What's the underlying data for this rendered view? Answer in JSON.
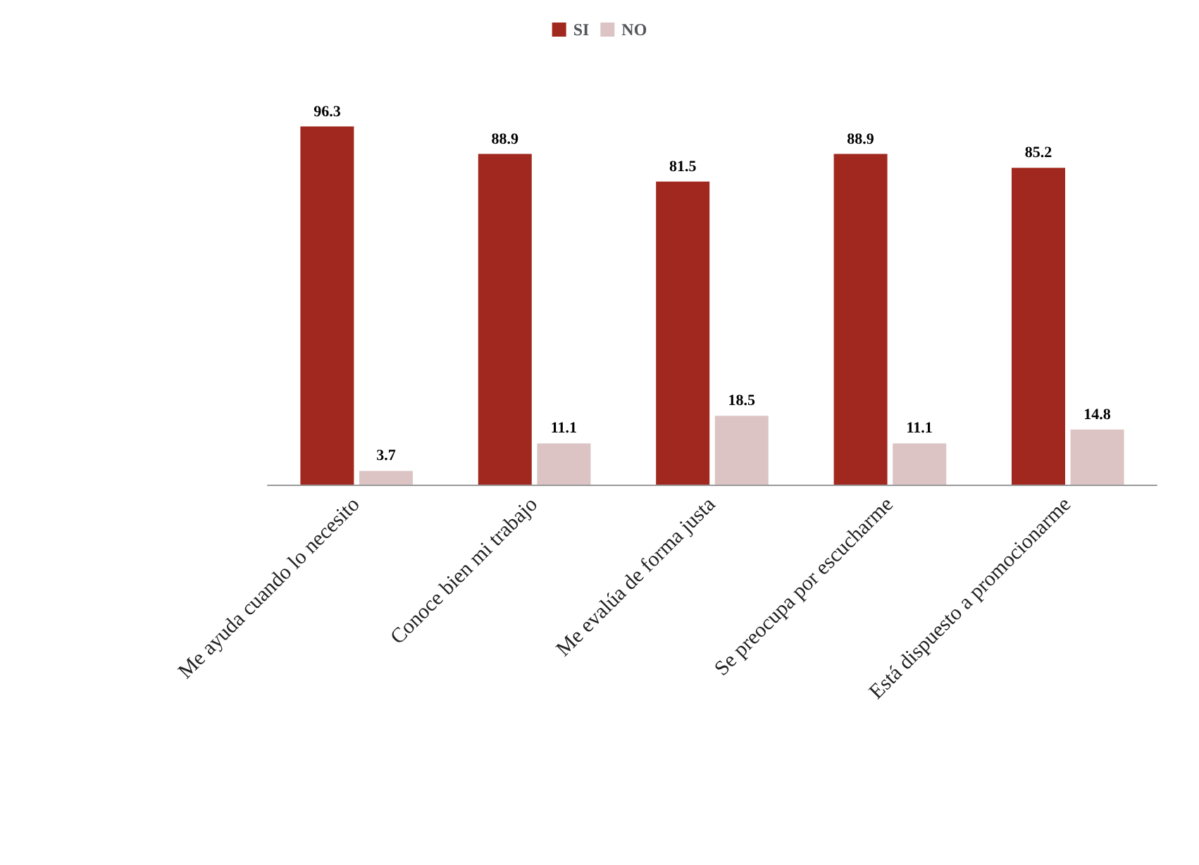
{
  "chart_data": {
    "type": "bar",
    "categories": [
      "Me ayuda cuando lo necesito",
      "Conoce bien mi trabajo",
      "Me evalúa de forma justa",
      "Se preocupa por escucharme",
      "Está dispuesto a promocionarme"
    ],
    "series": [
      {
        "name": "SI",
        "color": "#a0281e",
        "values": [
          96.3,
          88.9,
          81.5,
          88.9,
          85.2
        ]
      },
      {
        "name": "NO",
        "color": "#dcc4c4",
        "values": [
          3.7,
          11.1,
          18.5,
          11.1,
          14.8
        ]
      }
    ],
    "data_labels": true,
    "legend": "top"
  }
}
